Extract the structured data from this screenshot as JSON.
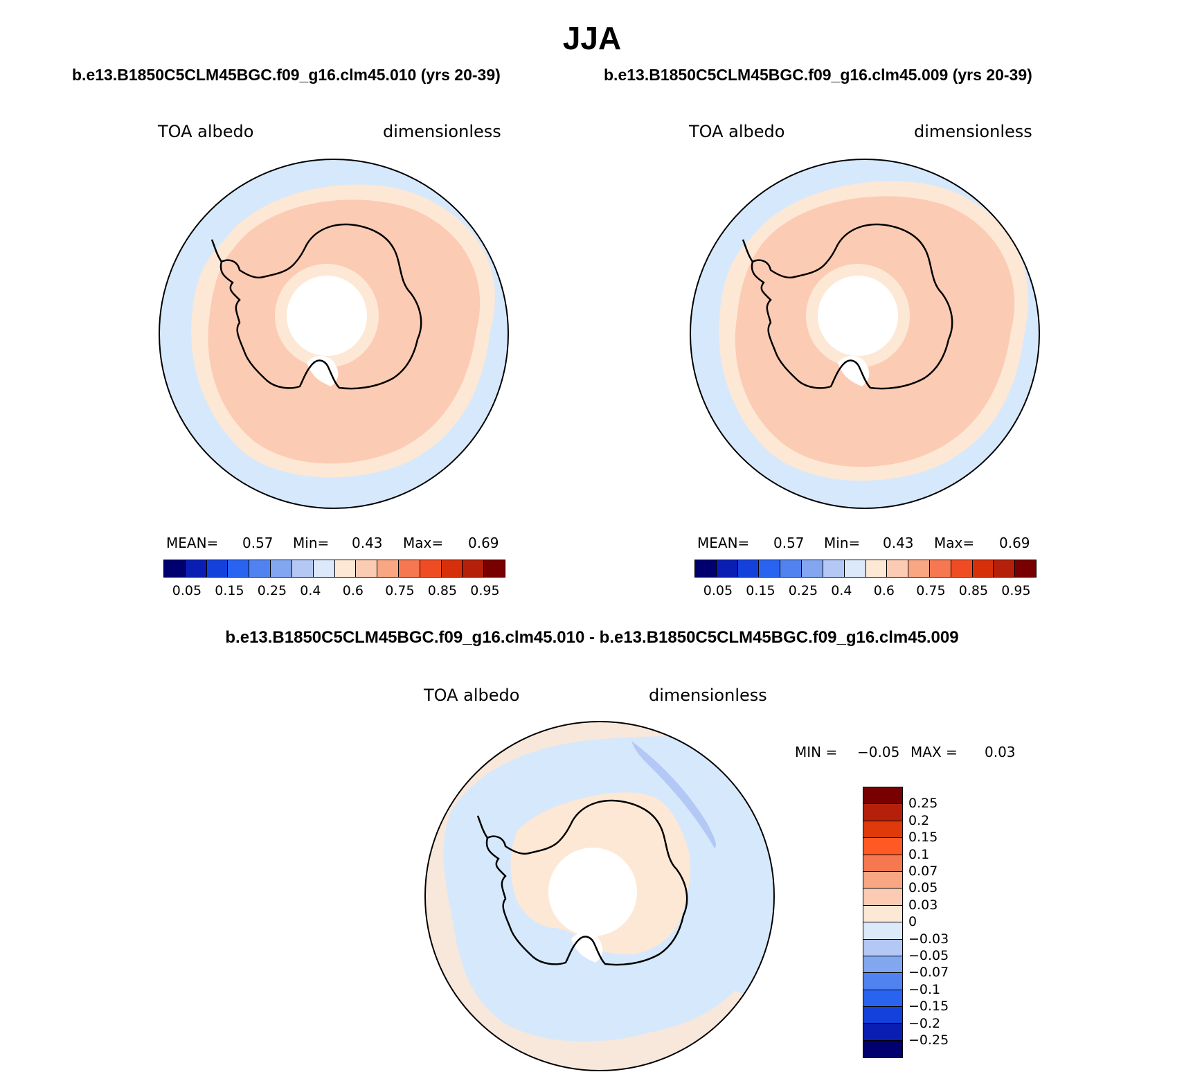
{
  "title": "JJA",
  "run_titles": {
    "left": "b.e13.B1850C5CLM45BGC.f09_g16.clm45.010 (yrs 20-39)",
    "right": "b.e13.B1850C5CLM45BGC.f09_g16.clm45.009 (yrs 20-39)"
  },
  "diff_title": "b.e13.B1850C5CLM45BGC.f09_g16.clm45.010 - b.e13.B1850C5CLM45BGC.f09_g16.clm45.009",
  "panels": {
    "left": {
      "variable": "TOA albedo",
      "units": "dimensionless",
      "mean_label": "MEAN=",
      "mean": "0.57",
      "min_label": "Min=",
      "min": "0.43",
      "max_label": "Max=",
      "max": "0.69"
    },
    "right": {
      "variable": "TOA albedo",
      "units": "dimensionless",
      "mean_label": "MEAN=",
      "mean": "0.57",
      "min_label": "Min=",
      "min": "0.43",
      "max_label": "Max=",
      "max": "0.69"
    },
    "diff": {
      "variable": "TOA albedo",
      "units": "dimensionless",
      "min_label": "MIN =",
      "min": "−0.05",
      "max_label": "MAX =",
      "max": "0.03"
    }
  },
  "colorbar_main": {
    "colors": [
      "#00006e",
      "#0a1eb4",
      "#1441dc",
      "#2864f0",
      "#5082f0",
      "#82a6f0",
      "#b4c8f5",
      "#dce9fa",
      "#fde8d5",
      "#fccbb3",
      "#f9a682",
      "#f57850",
      "#f04c23",
      "#d72f0a",
      "#b4200a",
      "#780000"
    ],
    "ticks": [
      "0.05",
      "0.15",
      "0.25",
      "0.4",
      "0.6",
      "0.75",
      "0.85",
      "0.95"
    ]
  },
  "colorbar_diff": {
    "colors": [
      "#780000",
      "#b4200a",
      "#e03a0a",
      "#ff5a23",
      "#f57850",
      "#f9a682",
      "#fccbb3",
      "#fde8d5",
      "#dce9fa",
      "#b4c8f5",
      "#82a6f0",
      "#5082f0",
      "#2864f0",
      "#1441dc",
      "#0a1eb4",
      "#00006e"
    ],
    "ticks": [
      "0.25",
      "0.2",
      "0.15",
      "0.1",
      "0.07",
      "0.05",
      "0.03",
      "0",
      "−0.03",
      "−0.05",
      "−0.07",
      "−0.1",
      "−0.15",
      "−0.2",
      "−0.25"
    ]
  },
  "map_colors": {
    "ocean": "#d6e8fb",
    "band": "#fde8d5",
    "ice": "#fccbb3",
    "hole": "#ffffff",
    "coast": "#000000"
  }
}
